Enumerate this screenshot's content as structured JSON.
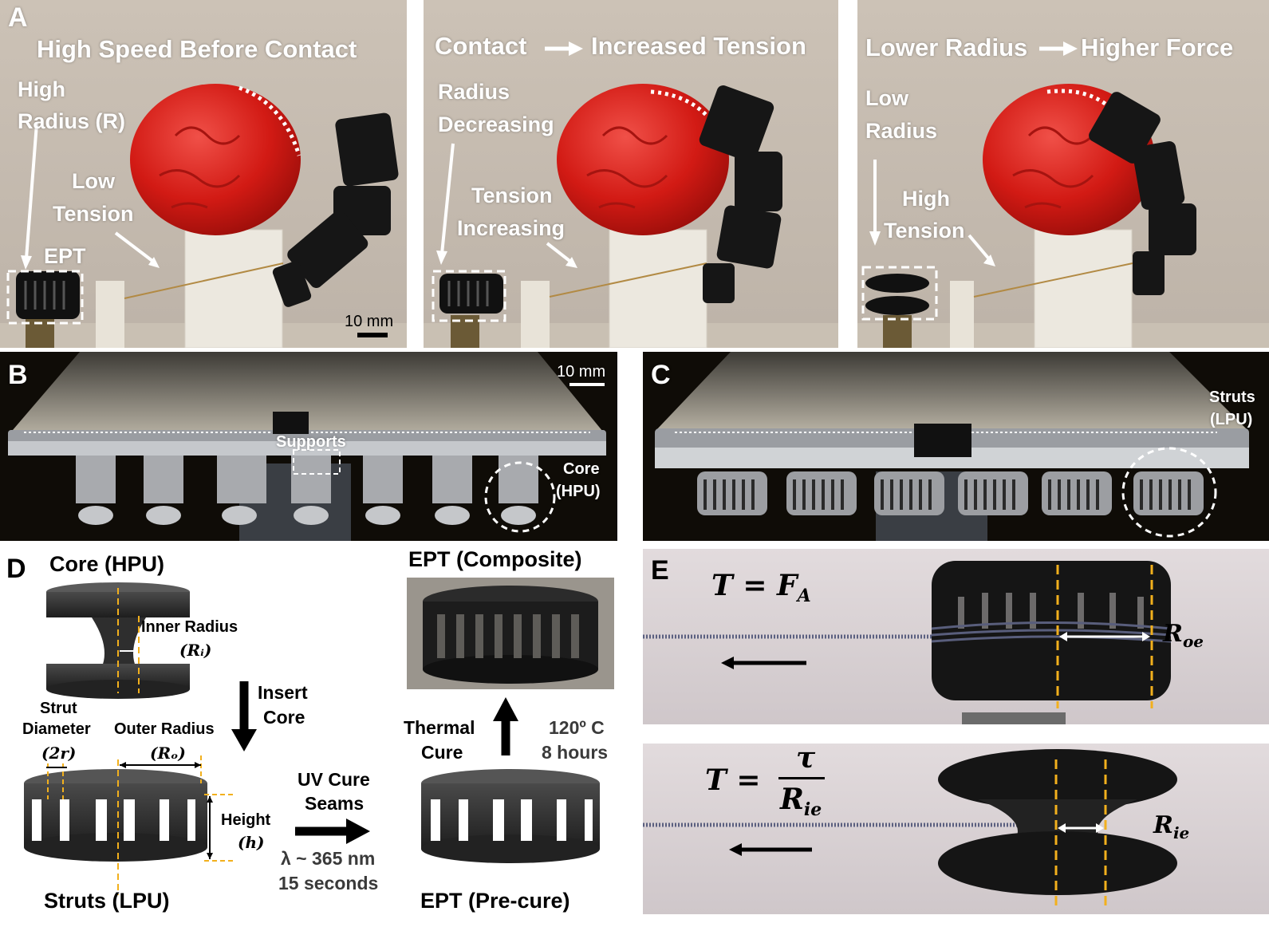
{
  "panel_a": {
    "letter": "A",
    "frames": [
      {
        "title": "High Speed Before Contact",
        "radius_label": [
          "High",
          "Radius (R)"
        ],
        "tension_label": [
          "Low",
          "Tension"
        ],
        "box_label": "EPT",
        "scale_bar": "10 mm"
      },
      {
        "title_left": "Contact",
        "title_right": "Increased Tension",
        "radius_label": [
          "Radius",
          "Decreasing"
        ],
        "tension_label": [
          "Tension",
          "Increasing"
        ]
      },
      {
        "title_left": "Lower Radius",
        "title_right": "Higher Force",
        "radius_label": [
          "Low",
          "Radius"
        ],
        "tension_label": [
          "High",
          "Tension"
        ]
      }
    ]
  },
  "panel_b": {
    "letter": "B",
    "scale_bar": "10 mm",
    "supports_label": "Supports",
    "core_label": [
      "Core",
      "(HPU)"
    ]
  },
  "panel_c": {
    "letter": "C",
    "struts_label": [
      "Struts",
      "(LPU)"
    ]
  },
  "panel_d": {
    "letter": "D",
    "core_title": "Core (HPU)",
    "inner_radius": [
      "Inner Radius",
      "(Rᵢ)"
    ],
    "insert_core": [
      "Insert",
      "Core"
    ],
    "strut_diameter": [
      "Strut",
      "Diameter",
      "(2r)"
    ],
    "outer_radius": [
      "Outer Radius",
      "(Rₒ)"
    ],
    "height": [
      "Height",
      "(h)"
    ],
    "struts_title": "Struts (LPU)",
    "uv_cure": [
      "UV Cure",
      "Seams"
    ],
    "uv_params": [
      "λ ~ 365 nm",
      "15 seconds"
    ],
    "precure_title": "EPT (Pre-cure)",
    "thermal_cure": [
      "Thermal",
      "Cure"
    ],
    "thermal_params": [
      "120º C",
      "8 hours"
    ],
    "composite_title": "EPT (Composite)"
  },
  "panel_e": {
    "letter": "E",
    "eq1": "T = F",
    "eq1_sub": "A",
    "r1": "R",
    "r1_sub": "oe",
    "eq2_lhs": "T =",
    "eq2_num": "τ",
    "eq2_den": "R",
    "eq2_den_sub": "ie",
    "r2": "R",
    "r2_sub": "ie"
  },
  "colors": {
    "object_red": "#d21a14",
    "dashed_guide": "#f2b01d",
    "gripper_black": "#141414"
  }
}
